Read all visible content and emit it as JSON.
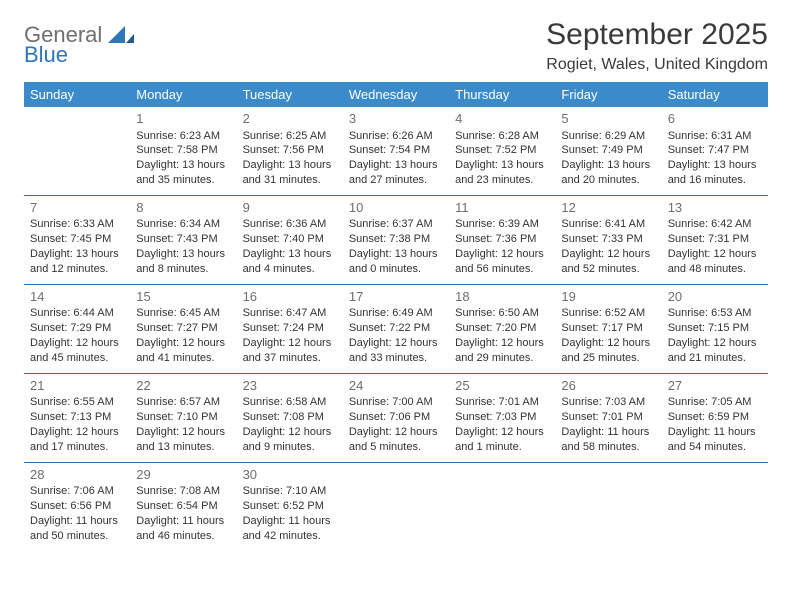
{
  "logo": {
    "word1": "General",
    "word2": "Blue"
  },
  "title": "September 2025",
  "location": "Rogiet, Wales, United Kingdom",
  "style": {
    "header_bg": "#3b8bca",
    "header_text": "#ffffff",
    "row_border": "#2f6fa5",
    "body_text": "#333333",
    "daynum_color": "#6e6e6e",
    "page_bg": "#ffffff",
    "title_fontsize": 30,
    "location_fontsize": 16,
    "th_fontsize": 13,
    "cell_fontsize": 11,
    "logo_gray": "#6f6f6f",
    "logo_blue": "#2f77b9"
  },
  "days_of_week": [
    "Sunday",
    "Monday",
    "Tuesday",
    "Wednesday",
    "Thursday",
    "Friday",
    "Saturday"
  ],
  "weeks": [
    [
      null,
      {
        "n": "1",
        "sr": "Sunrise: 6:23 AM",
        "ss": "Sunset: 7:58 PM",
        "dl1": "Daylight: 13 hours",
        "dl2": "and 35 minutes."
      },
      {
        "n": "2",
        "sr": "Sunrise: 6:25 AM",
        "ss": "Sunset: 7:56 PM",
        "dl1": "Daylight: 13 hours",
        "dl2": "and 31 minutes."
      },
      {
        "n": "3",
        "sr": "Sunrise: 6:26 AM",
        "ss": "Sunset: 7:54 PM",
        "dl1": "Daylight: 13 hours",
        "dl2": "and 27 minutes."
      },
      {
        "n": "4",
        "sr": "Sunrise: 6:28 AM",
        "ss": "Sunset: 7:52 PM",
        "dl1": "Daylight: 13 hours",
        "dl2": "and 23 minutes."
      },
      {
        "n": "5",
        "sr": "Sunrise: 6:29 AM",
        "ss": "Sunset: 7:49 PM",
        "dl1": "Daylight: 13 hours",
        "dl2": "and 20 minutes."
      },
      {
        "n": "6",
        "sr": "Sunrise: 6:31 AM",
        "ss": "Sunset: 7:47 PM",
        "dl1": "Daylight: 13 hours",
        "dl2": "and 16 minutes."
      }
    ],
    [
      {
        "n": "7",
        "sr": "Sunrise: 6:33 AM",
        "ss": "Sunset: 7:45 PM",
        "dl1": "Daylight: 13 hours",
        "dl2": "and 12 minutes."
      },
      {
        "n": "8",
        "sr": "Sunrise: 6:34 AM",
        "ss": "Sunset: 7:43 PM",
        "dl1": "Daylight: 13 hours",
        "dl2": "and 8 minutes."
      },
      {
        "n": "9",
        "sr": "Sunrise: 6:36 AM",
        "ss": "Sunset: 7:40 PM",
        "dl1": "Daylight: 13 hours",
        "dl2": "and 4 minutes."
      },
      {
        "n": "10",
        "sr": "Sunrise: 6:37 AM",
        "ss": "Sunset: 7:38 PM",
        "dl1": "Daylight: 13 hours",
        "dl2": "and 0 minutes."
      },
      {
        "n": "11",
        "sr": "Sunrise: 6:39 AM",
        "ss": "Sunset: 7:36 PM",
        "dl1": "Daylight: 12 hours",
        "dl2": "and 56 minutes."
      },
      {
        "n": "12",
        "sr": "Sunrise: 6:41 AM",
        "ss": "Sunset: 7:33 PM",
        "dl1": "Daylight: 12 hours",
        "dl2": "and 52 minutes."
      },
      {
        "n": "13",
        "sr": "Sunrise: 6:42 AM",
        "ss": "Sunset: 7:31 PM",
        "dl1": "Daylight: 12 hours",
        "dl2": "and 48 minutes."
      }
    ],
    [
      {
        "n": "14",
        "sr": "Sunrise: 6:44 AM",
        "ss": "Sunset: 7:29 PM",
        "dl1": "Daylight: 12 hours",
        "dl2": "and 45 minutes."
      },
      {
        "n": "15",
        "sr": "Sunrise: 6:45 AM",
        "ss": "Sunset: 7:27 PM",
        "dl1": "Daylight: 12 hours",
        "dl2": "and 41 minutes."
      },
      {
        "n": "16",
        "sr": "Sunrise: 6:47 AM",
        "ss": "Sunset: 7:24 PM",
        "dl1": "Daylight: 12 hours",
        "dl2": "and 37 minutes."
      },
      {
        "n": "17",
        "sr": "Sunrise: 6:49 AM",
        "ss": "Sunset: 7:22 PM",
        "dl1": "Daylight: 12 hours",
        "dl2": "and 33 minutes."
      },
      {
        "n": "18",
        "sr": "Sunrise: 6:50 AM",
        "ss": "Sunset: 7:20 PM",
        "dl1": "Daylight: 12 hours",
        "dl2": "and 29 minutes."
      },
      {
        "n": "19",
        "sr": "Sunrise: 6:52 AM",
        "ss": "Sunset: 7:17 PM",
        "dl1": "Daylight: 12 hours",
        "dl2": "and 25 minutes."
      },
      {
        "n": "20",
        "sr": "Sunrise: 6:53 AM",
        "ss": "Sunset: 7:15 PM",
        "dl1": "Daylight: 12 hours",
        "dl2": "and 21 minutes."
      }
    ],
    [
      {
        "n": "21",
        "sr": "Sunrise: 6:55 AM",
        "ss": "Sunset: 7:13 PM",
        "dl1": "Daylight: 12 hours",
        "dl2": "and 17 minutes."
      },
      {
        "n": "22",
        "sr": "Sunrise: 6:57 AM",
        "ss": "Sunset: 7:10 PM",
        "dl1": "Daylight: 12 hours",
        "dl2": "and 13 minutes."
      },
      {
        "n": "23",
        "sr": "Sunrise: 6:58 AM",
        "ss": "Sunset: 7:08 PM",
        "dl1": "Daylight: 12 hours",
        "dl2": "and 9 minutes."
      },
      {
        "n": "24",
        "sr": "Sunrise: 7:00 AM",
        "ss": "Sunset: 7:06 PM",
        "dl1": "Daylight: 12 hours",
        "dl2": "and 5 minutes."
      },
      {
        "n": "25",
        "sr": "Sunrise: 7:01 AM",
        "ss": "Sunset: 7:03 PM",
        "dl1": "Daylight: 12 hours",
        "dl2": "and 1 minute."
      },
      {
        "n": "26",
        "sr": "Sunrise: 7:03 AM",
        "ss": "Sunset: 7:01 PM",
        "dl1": "Daylight: 11 hours",
        "dl2": "and 58 minutes."
      },
      {
        "n": "27",
        "sr": "Sunrise: 7:05 AM",
        "ss": "Sunset: 6:59 PM",
        "dl1": "Daylight: 11 hours",
        "dl2": "and 54 minutes."
      }
    ],
    [
      {
        "n": "28",
        "sr": "Sunrise: 7:06 AM",
        "ss": "Sunset: 6:56 PM",
        "dl1": "Daylight: 11 hours",
        "dl2": "and 50 minutes."
      },
      {
        "n": "29",
        "sr": "Sunrise: 7:08 AM",
        "ss": "Sunset: 6:54 PM",
        "dl1": "Daylight: 11 hours",
        "dl2": "and 46 minutes."
      },
      {
        "n": "30",
        "sr": "Sunrise: 7:10 AM",
        "ss": "Sunset: 6:52 PM",
        "dl1": "Daylight: 11 hours",
        "dl2": "and 42 minutes."
      },
      null,
      null,
      null,
      null
    ]
  ]
}
